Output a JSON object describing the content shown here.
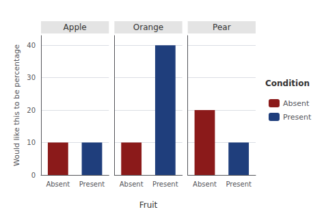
{
  "chart_data": {
    "type": "bar",
    "xlabel": "Fruit",
    "ylabel": "Would like this to be percentage",
    "legend_title": "Condition",
    "legend": "right",
    "grid": true,
    "categories": [
      "Absent",
      "Present"
    ],
    "colors": [
      "#8B1A1A",
      "#1F3E7C"
    ],
    "ylim": [
      0,
      43
    ],
    "yticks": [
      0,
      10,
      20,
      30,
      40
    ],
    "panels": [
      {
        "title": "Apple",
        "values": [
          10,
          10
        ]
      },
      {
        "title": "Orange",
        "values": [
          10,
          40
        ],
        "tick_labels": "x"
      },
      {
        "title": "Pear",
        "values": [
          20,
          10
        ],
        "tick_labels": "x"
      }
    ]
  }
}
